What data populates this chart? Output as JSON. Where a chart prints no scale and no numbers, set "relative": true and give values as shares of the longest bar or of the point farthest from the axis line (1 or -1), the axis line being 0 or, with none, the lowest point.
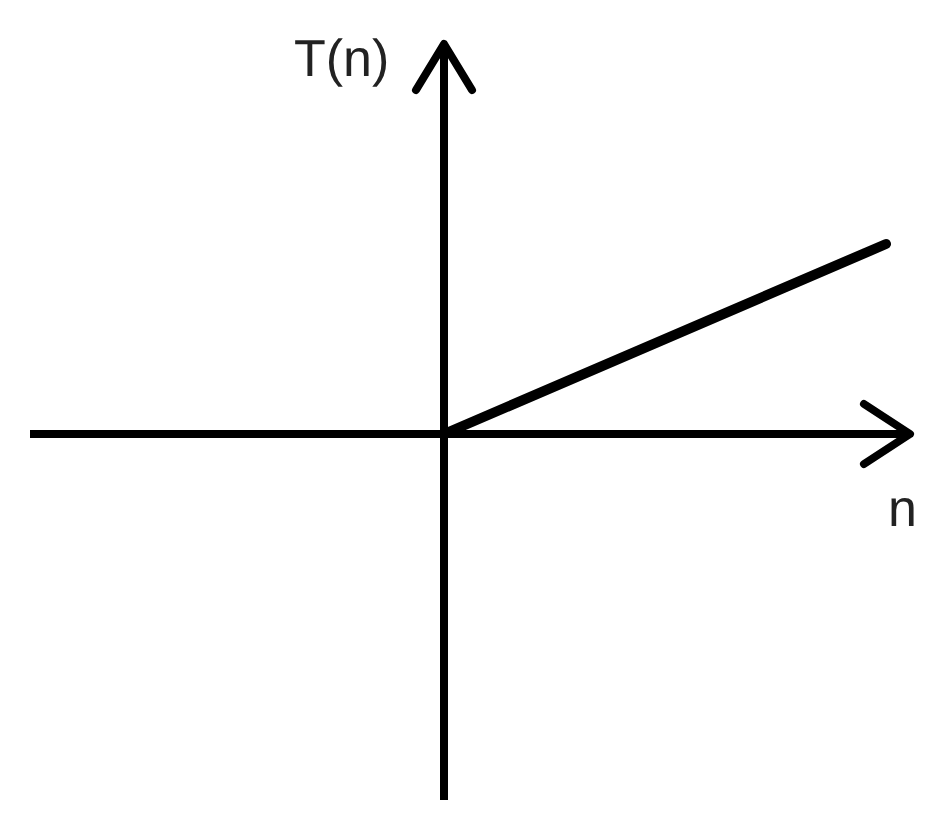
{
  "chart_data": {
    "type": "line",
    "relative": true,
    "xlabel": "n",
    "ylabel": "T(n)",
    "categories": [
      null,
      null
    ],
    "series": [
      {
        "color": "#000000",
        "values": [
          0,
          1
        ]
      }
    ]
  }
}
